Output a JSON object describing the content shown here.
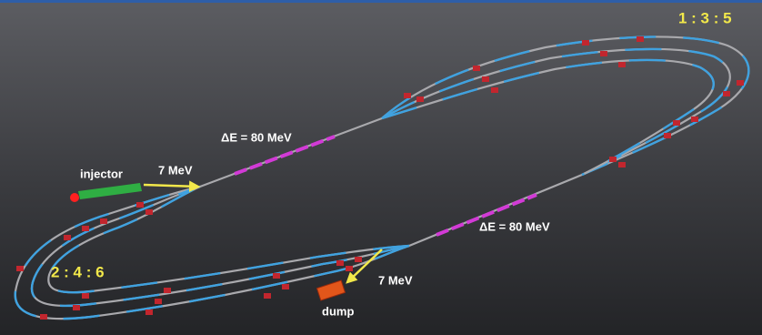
{
  "labels": {
    "odd_passes": "1 : 3 : 5",
    "even_passes": "2 : 4 : 6",
    "upper_energy_gain": "ΔE = 80 MeV",
    "lower_energy_gain": "ΔE = 80 MeV",
    "injector": "injector",
    "injection_energy": "7 MeV",
    "dump_energy": "7 MeV",
    "dump": "dump"
  }
}
